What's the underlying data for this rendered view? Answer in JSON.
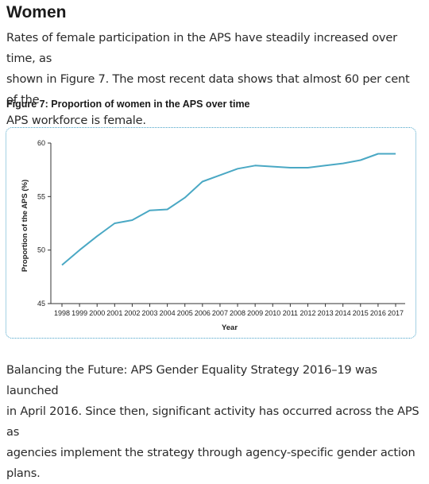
{
  "section": {
    "heading": "Women",
    "intro_line1": "Rates of female participation in the APS have steadily increased over time, as",
    "intro_line2": "shown in Figure 7. The most recent data shows that almost 60 per cent of the",
    "intro_line3": "APS workforce is female.",
    "figure_caption": "Figure 7: Proportion of women in the APS over time",
    "outro_line1": "Balancing the Future: APS Gender Equality Strategy 2016–19 was launched",
    "outro_line2": "in April 2016. Since then, significant activity has occurred across the APS as",
    "outro_line3": "agencies implement the strategy through agency-specific gender action plans."
  },
  "chart_data": {
    "type": "line",
    "xlabel": "Year",
    "ylabel": "Proportion of the APS (%)",
    "ylim": [
      45,
      60
    ],
    "yticks": [
      45,
      50,
      55,
      60
    ],
    "x": [
      "1998",
      "1999",
      "2000",
      "2001",
      "2002",
      "2003",
      "2004",
      "2005",
      "2006",
      "2007",
      "2008",
      "2009",
      "2010",
      "2011",
      "2012",
      "2013",
      "2014",
      "2015",
      "2016",
      "2017"
    ],
    "series": [
      {
        "values": [
          48.6,
          50.0,
          51.3,
          52.5,
          52.8,
          53.7,
          53.8,
          54.9,
          56.4,
          57.0,
          57.6,
          57.9,
          57.8,
          57.7,
          57.7,
          57.9,
          58.1,
          58.4,
          59.0,
          59.0
        ],
        "color": "#4aa8c4"
      }
    ],
    "grid": false
  }
}
